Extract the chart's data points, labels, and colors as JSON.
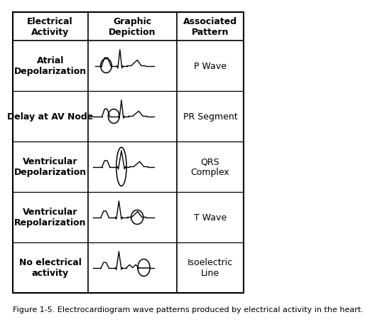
{
  "title": "Figure 1-5. Electrocardiogram wave patterns produced by electrical activity in the heart.",
  "col_headers": [
    "Electrical\nActivity",
    "Graphic\nDepiction",
    "Associated\nPattern"
  ],
  "rows": [
    {
      "activity": "Atrial\nDepolarization",
      "pattern": "P Wave"
    },
    {
      "activity": "Delay at AV Node",
      "pattern": "PR Segment"
    },
    {
      "activity": "Ventricular\nDepolarization",
      "pattern": "QRS\nComplex"
    },
    {
      "activity": "Ventricular\nRepolarization",
      "pattern": "T Wave"
    },
    {
      "activity": "No electrical\nactivity",
      "pattern": "Isoelectric\nLine"
    }
  ],
  "bg_color": "#ffffff",
  "line_color": "#000000",
  "text_color": "#000000",
  "header_fontsize": 9,
  "body_fontsize": 9,
  "caption_fontsize": 8
}
